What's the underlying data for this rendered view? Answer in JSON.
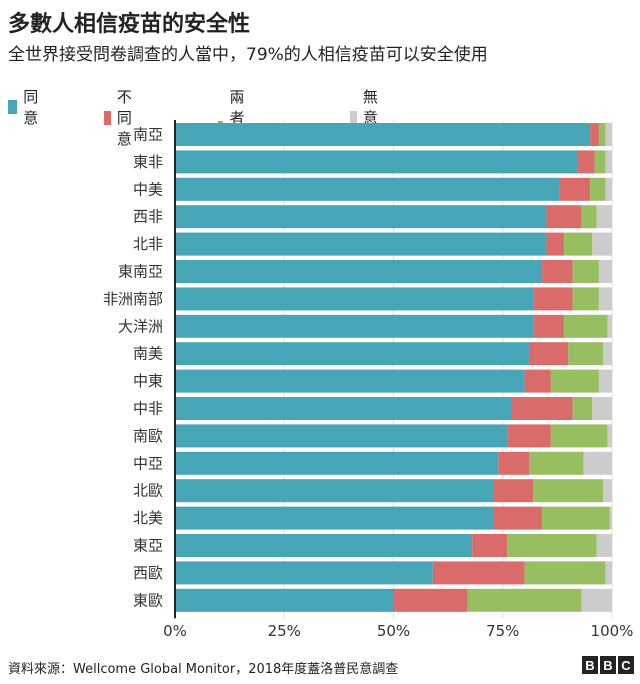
{
  "header": {
    "title": "多數人相信疫苗的安全性",
    "subtitle": "全世界接受問卷調查的人當中，79%的人相信疫苗可以安全使用"
  },
  "legend": [
    {
      "label": "同意",
      "color": "#46a6b8"
    },
    {
      "label": "不同意",
      "color": "#d96b6b"
    },
    {
      "label": "兩者皆不",
      "color": "#97bf62"
    },
    {
      "label": "無意見",
      "color": "#cccccc"
    }
  ],
  "footer": {
    "source": "資料來源：Wellcome Global Monitor，2018年度蓋洛普民意調查",
    "logo_letters": [
      "B",
      "B",
      "C"
    ]
  },
  "chart_data": {
    "type": "bar",
    "orientation": "horizontal",
    "stacked": true,
    "title": "多數人相信疫苗的安全性",
    "subtitle": "全世界接受問卷調查的人當中，79%的人相信疫苗可以安全使用",
    "categories": [
      "南亞",
      "東非",
      "中美",
      "西非",
      "北非",
      "東南亞",
      "非洲南部",
      "大洋洲",
      "南美",
      "中東",
      "中非",
      "南歐",
      "中亞",
      "北歐",
      "北美",
      "東亞",
      "西歐",
      "東歐"
    ],
    "series": [
      {
        "name": "同意",
        "color": "#46a6b8",
        "values": [
          95,
          92,
          88,
          85,
          85,
          84,
          82,
          82,
          81,
          80,
          77,
          76,
          74,
          73,
          73,
          68,
          59,
          50
        ]
      },
      {
        "name": "不同意",
        "color": "#d96b6b",
        "values": [
          2,
          4,
          7,
          8,
          4,
          7,
          9,
          7,
          9,
          6,
          14,
          10,
          7,
          9,
          11,
          8,
          21,
          17
        ]
      },
      {
        "name": "兩者皆不",
        "color": "#97bf62",
        "values": [
          1.5,
          2.5,
          3.5,
          3.5,
          6.5,
          6,
          6,
          10,
          8,
          11,
          4.5,
          13,
          12.5,
          16,
          15.5,
          20.5,
          18.5,
          26
        ]
      },
      {
        "name": "無意見",
        "color": "#cccccc",
        "values": [
          1.5,
          1.5,
          1.5,
          3.5,
          4.5,
          3,
          3,
          1,
          2,
          3,
          4.5,
          1,
          6.5,
          2,
          0.5,
          3.5,
          1.5,
          7
        ]
      }
    ],
    "xlim": [
      0,
      100
    ],
    "xticks": [
      "0%",
      "25%",
      "50%",
      "75%",
      "100%"
    ],
    "grid": true,
    "legend_position": "top-left"
  }
}
